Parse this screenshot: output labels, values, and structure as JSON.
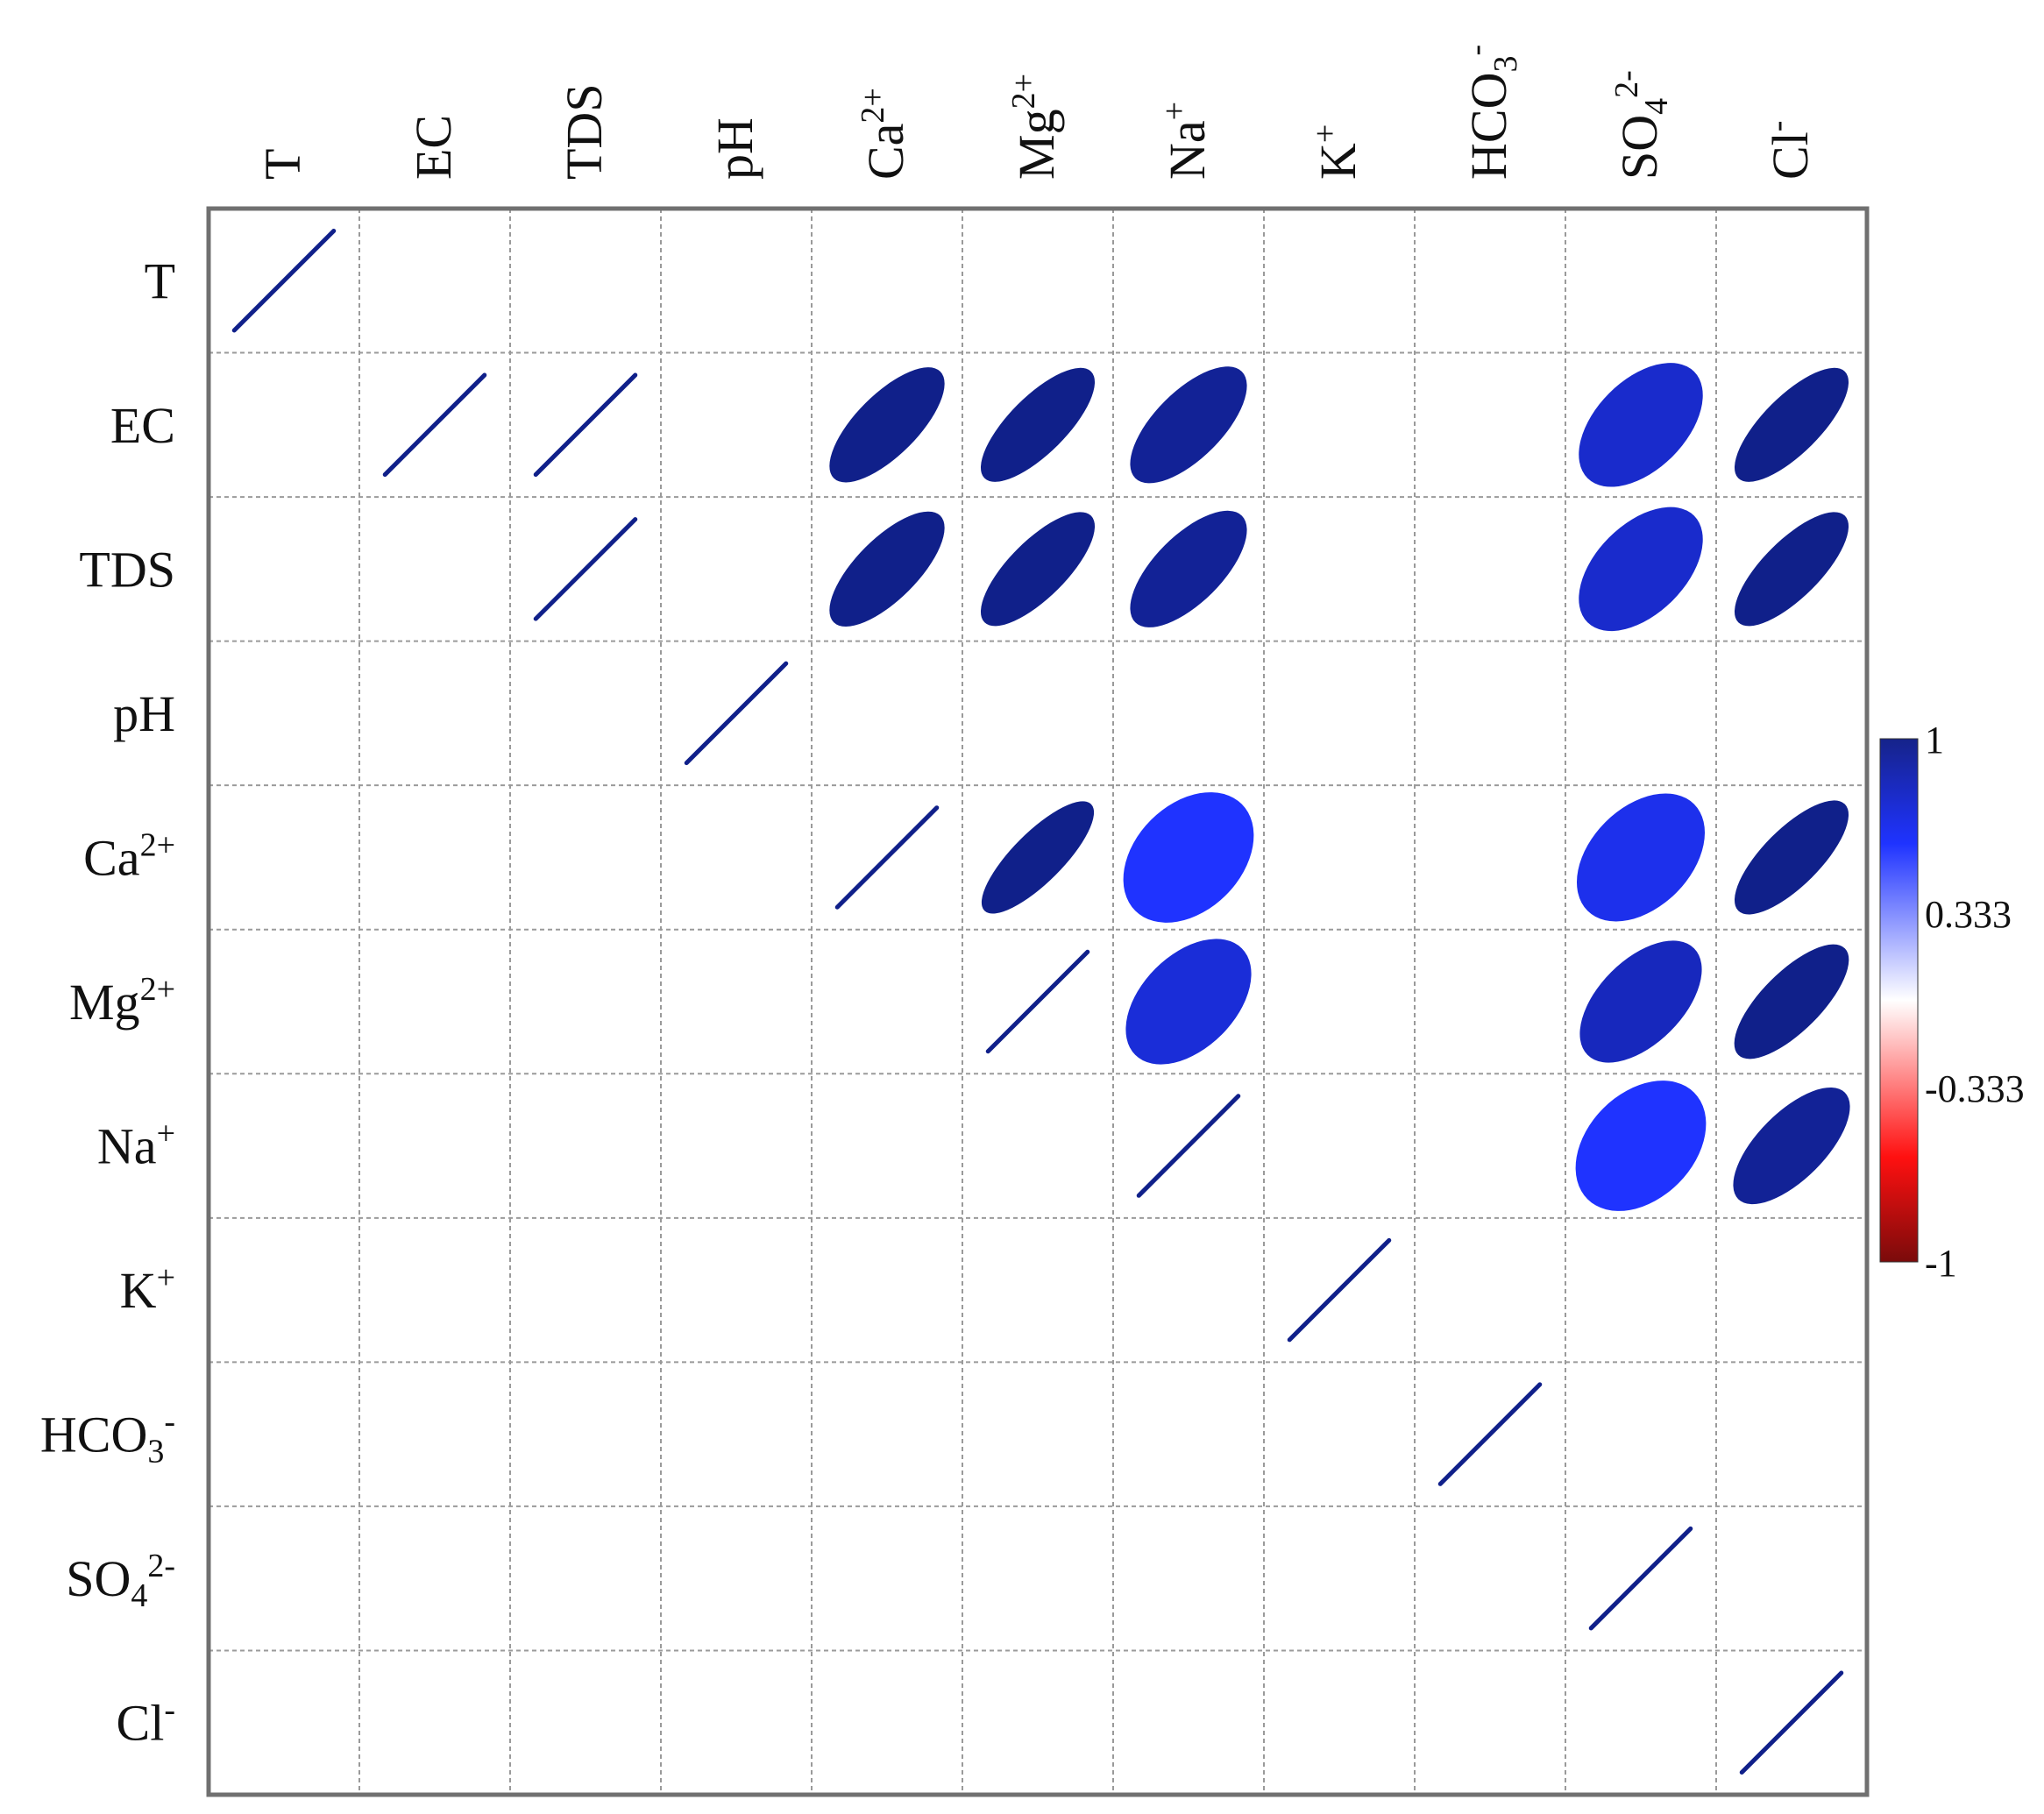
{
  "chart_data": {
    "type": "heatmap",
    "title": "",
    "xlabel": "",
    "ylabel": "",
    "variables": [
      {
        "base": "T",
        "sup": "",
        "sub": ""
      },
      {
        "base": "EC",
        "sup": "",
        "sub": ""
      },
      {
        "base": "TDS",
        "sup": "",
        "sub": ""
      },
      {
        "base": "pH",
        "sup": "",
        "sub": ""
      },
      {
        "base": "Ca",
        "sup": "2+",
        "sub": ""
      },
      {
        "base": "Mg",
        "sup": "2+",
        "sub": ""
      },
      {
        "base": "Na",
        "sup": "+",
        "sub": ""
      },
      {
        "base": "K",
        "sup": "+",
        "sub": ""
      },
      {
        "base": "HCO",
        "sup": "-",
        "sub": "3"
      },
      {
        "base": "SO",
        "sup": "2-",
        "sub": "4"
      },
      {
        "base": "Cl",
        "sup": "-",
        "sub": ""
      }
    ],
    "cells": [
      {
        "row": 0,
        "col": 0,
        "r": 1.0
      },
      {
        "row": 1,
        "col": 1,
        "r": 1.0
      },
      {
        "row": 1,
        "col": 2,
        "r": 1.0
      },
      {
        "row": 1,
        "col": 4,
        "r": 0.85
      },
      {
        "row": 1,
        "col": 5,
        "r": 0.87
      },
      {
        "row": 1,
        "col": 6,
        "r": 0.82
      },
      {
        "row": 1,
        "col": 9,
        "r": 0.68
      },
      {
        "row": 1,
        "col": 10,
        "r": 0.87
      },
      {
        "row": 2,
        "col": 2,
        "r": 1.0
      },
      {
        "row": 2,
        "col": 4,
        "r": 0.85
      },
      {
        "row": 2,
        "col": 5,
        "r": 0.87
      },
      {
        "row": 2,
        "col": 6,
        "r": 0.82
      },
      {
        "row": 2,
        "col": 9,
        "r": 0.68
      },
      {
        "row": 2,
        "col": 10,
        "r": 0.87
      },
      {
        "row": 3,
        "col": 3,
        "r": 1.0
      },
      {
        "row": 4,
        "col": 4,
        "r": 1.0
      },
      {
        "row": 4,
        "col": 5,
        "r": 0.9
      },
      {
        "row": 4,
        "col": 6,
        "r": 0.55
      },
      {
        "row": 4,
        "col": 9,
        "r": 0.6
      },
      {
        "row": 4,
        "col": 10,
        "r": 0.87
      },
      {
        "row": 5,
        "col": 5,
        "r": 1.0
      },
      {
        "row": 5,
        "col": 6,
        "r": 0.65
      },
      {
        "row": 5,
        "col": 9,
        "r": 0.72
      },
      {
        "row": 5,
        "col": 10,
        "r": 0.86
      },
      {
        "row": 6,
        "col": 6,
        "r": 1.0
      },
      {
        "row": 6,
        "col": 9,
        "r": 0.55
      },
      {
        "row": 6,
        "col": 10,
        "r": 0.82
      },
      {
        "row": 7,
        "col": 7,
        "r": 1.0
      },
      {
        "row": 8,
        "col": 8,
        "r": 1.0
      },
      {
        "row": 9,
        "col": 9,
        "r": 1.0
      },
      {
        "row": 10,
        "col": 10,
        "r": 1.0
      }
    ],
    "colorbar": {
      "min": -1,
      "max": 1,
      "tick_labels": [
        "1",
        "0.333",
        "-0.333",
        "-1"
      ],
      "tick_values": [
        1,
        0.333,
        -0.333,
        -1
      ]
    },
    "colors": {
      "strong_positive": "#10208a",
      "mid_positive": "#1f33ff",
      "zero": "#ffffff",
      "mid_negative": "#ff1010",
      "strong_negative": "#7a0b0b",
      "grid": "#9a9a9a",
      "frame": "#707070"
    },
    "grid": true,
    "legend_position": "right"
  }
}
